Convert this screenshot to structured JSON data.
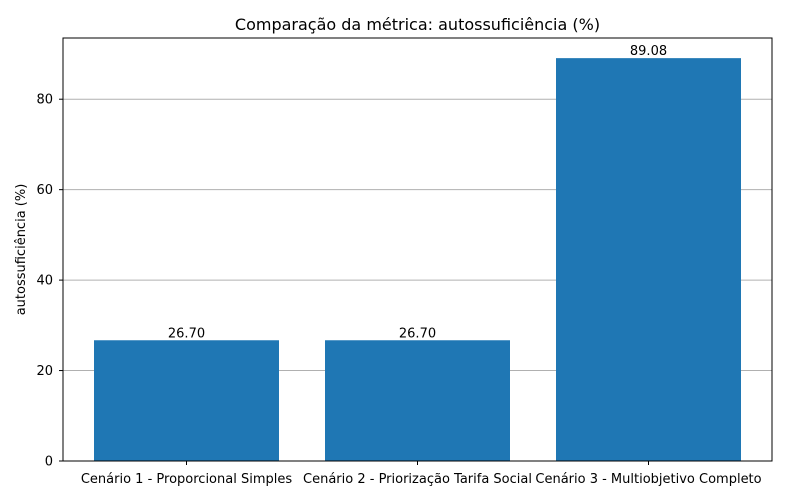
{
  "chart_data": {
    "type": "bar",
    "title": "Comparação da métrica: autossuficiência (%)",
    "xlabel": "",
    "ylabel": "autossuficiência (%)",
    "categories": [
      "Cenário 1 - Proporcional Simples",
      "Cenário 2 - Priorização Tarifa Social",
      "Cenário 3 - Multiobjetivo Completo"
    ],
    "values": [
      26.7,
      26.7,
      89.08
    ],
    "data_labels": [
      "26.70",
      "26.70",
      "89.08"
    ],
    "ylim": [
      0,
      93.534
    ],
    "yticks": [
      0,
      20,
      40,
      60,
      80
    ],
    "ytick_labels": [
      "0",
      "20",
      "40",
      "60",
      "80"
    ],
    "grid": "y-major",
    "bar_color": "#1f77b4",
    "grid_color": "#b0b0b0"
  }
}
